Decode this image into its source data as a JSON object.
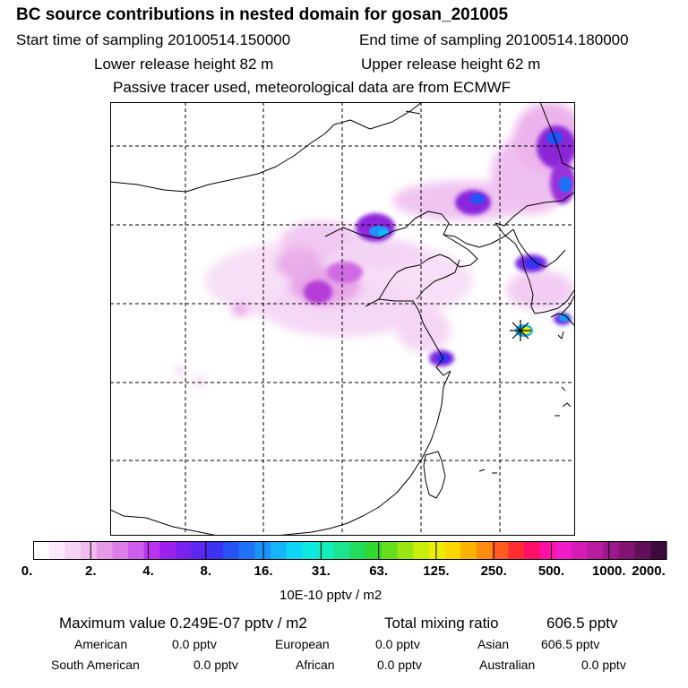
{
  "title": "BC  source contributions in nested domain for gosan_201005",
  "header": {
    "start_label": "Start time of sampling 20100514.150000",
    "end_label": "End time of sampling 20100514.180000",
    "lower_label": "Lower release height   82 m",
    "upper_label": "Upper release height   62 m",
    "tracer_note": "Passive tracer used, meteorological data are from ECMWF"
  },
  "colorbar": {
    "labels": [
      "0.",
      "2.",
      "4.",
      "8.",
      "16.",
      "31.",
      "63.",
      "125.",
      "250.",
      "500.",
      "1000.",
      "2000."
    ],
    "unit": "10E-10 pptv / m2",
    "colors": [
      "#ffffff",
      "#fbe8fb",
      "#f6d2f6",
      "#f0bcf0",
      "#e79be7",
      "#dc7ee6",
      "#ce5cec",
      "#bb33ee",
      "#9c20ee",
      "#7a22f0",
      "#5a28f2",
      "#3b32f4",
      "#2452f5",
      "#1f72f6",
      "#1a94f7",
      "#14b6f8",
      "#0fd6f6",
      "#0ee8e0",
      "#14eeba",
      "#1de58f",
      "#22dc5c",
      "#30d830",
      "#66de1c",
      "#9ae612",
      "#c8ee0c",
      "#ecee06",
      "#ffd800",
      "#ffb200",
      "#ff8c10",
      "#ff5a20",
      "#ff2c30",
      "#ff1068",
      "#ff10a4",
      "#f01cc8",
      "#d41cb4",
      "#b81ca0",
      "#9c1888",
      "#801470",
      "#600f58",
      "#3e0a3e"
    ]
  },
  "stats": {
    "max_label": "Maximum value  0.249E-07 pptv / m2",
    "total_label": "Total mixing ratio",
    "total_value": "606.5 pptv",
    "regions": [
      {
        "name": "American",
        "value": "0.0 pptv"
      },
      {
        "name": "European",
        "value": "0.0 pptv"
      },
      {
        "name": "Asian",
        "value": "606.5 pptv"
      },
      {
        "name": "South American",
        "value": "0.0 pptv"
      },
      {
        "name": "African",
        "value": "0.0 pptv"
      },
      {
        "name": "Australian",
        "value": "0.0 pptv"
      }
    ]
  }
}
